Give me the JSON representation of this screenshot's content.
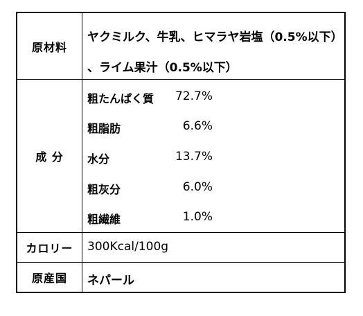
{
  "rows": {
    "ingredients": {
      "label": "原材料",
      "line1": "ヤクミルク、牛乳、ヒマラヤ岩塩（0.5%以下）",
      "line2": "、ライム果汁（0.5%以下）"
    },
    "composition": {
      "label": "成 分",
      "items": [
        {
          "name": "粗たんぱく質",
          "value": "72.7%"
        },
        {
          "name": "粗脂肪",
          "value": "6.6%"
        },
        {
          "name": "水分",
          "value": "13.7%"
        },
        {
          "name": "粗灰分",
          "value": "6.0%"
        },
        {
          "name": "粗繊維",
          "value": "1.0%"
        }
      ]
    },
    "calories": {
      "label": "カロリー",
      "value": "300Kcal/100g"
    },
    "origin": {
      "label": "原産国",
      "value": "ネパール"
    }
  }
}
